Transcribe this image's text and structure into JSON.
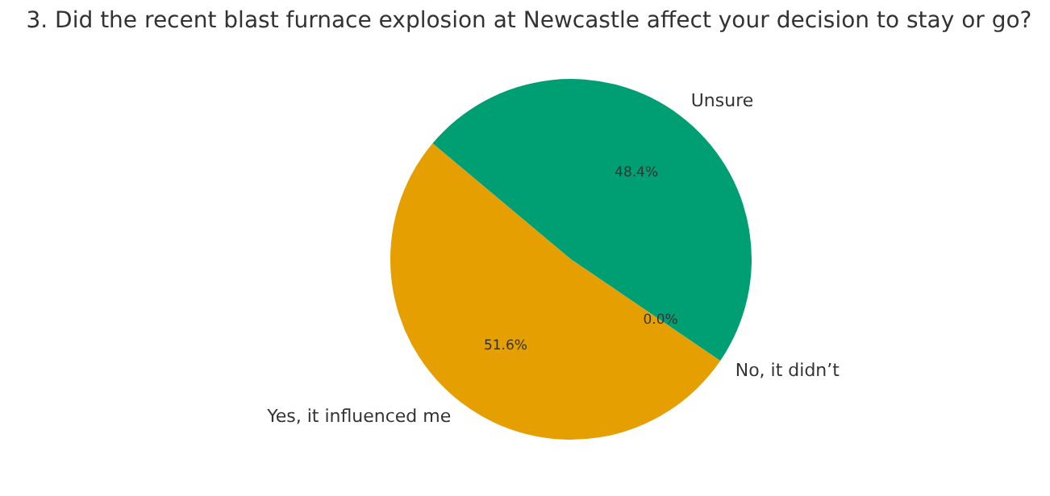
{
  "chart_data": {
    "type": "pie",
    "title": "3. Did the recent blast furnace explosion at Newcastle affect your decision to stay or go?",
    "categories": [
      "Yes, it influenced me",
      "No, it didn’t",
      "Unsure"
    ],
    "values": [
      51.6,
      0.0,
      48.4
    ],
    "colors": [
      "#e69f00",
      "#56b4e9",
      "#009e73"
    ],
    "value_labels": [
      "51.6%",
      "0.0%",
      "48.4%"
    ]
  }
}
